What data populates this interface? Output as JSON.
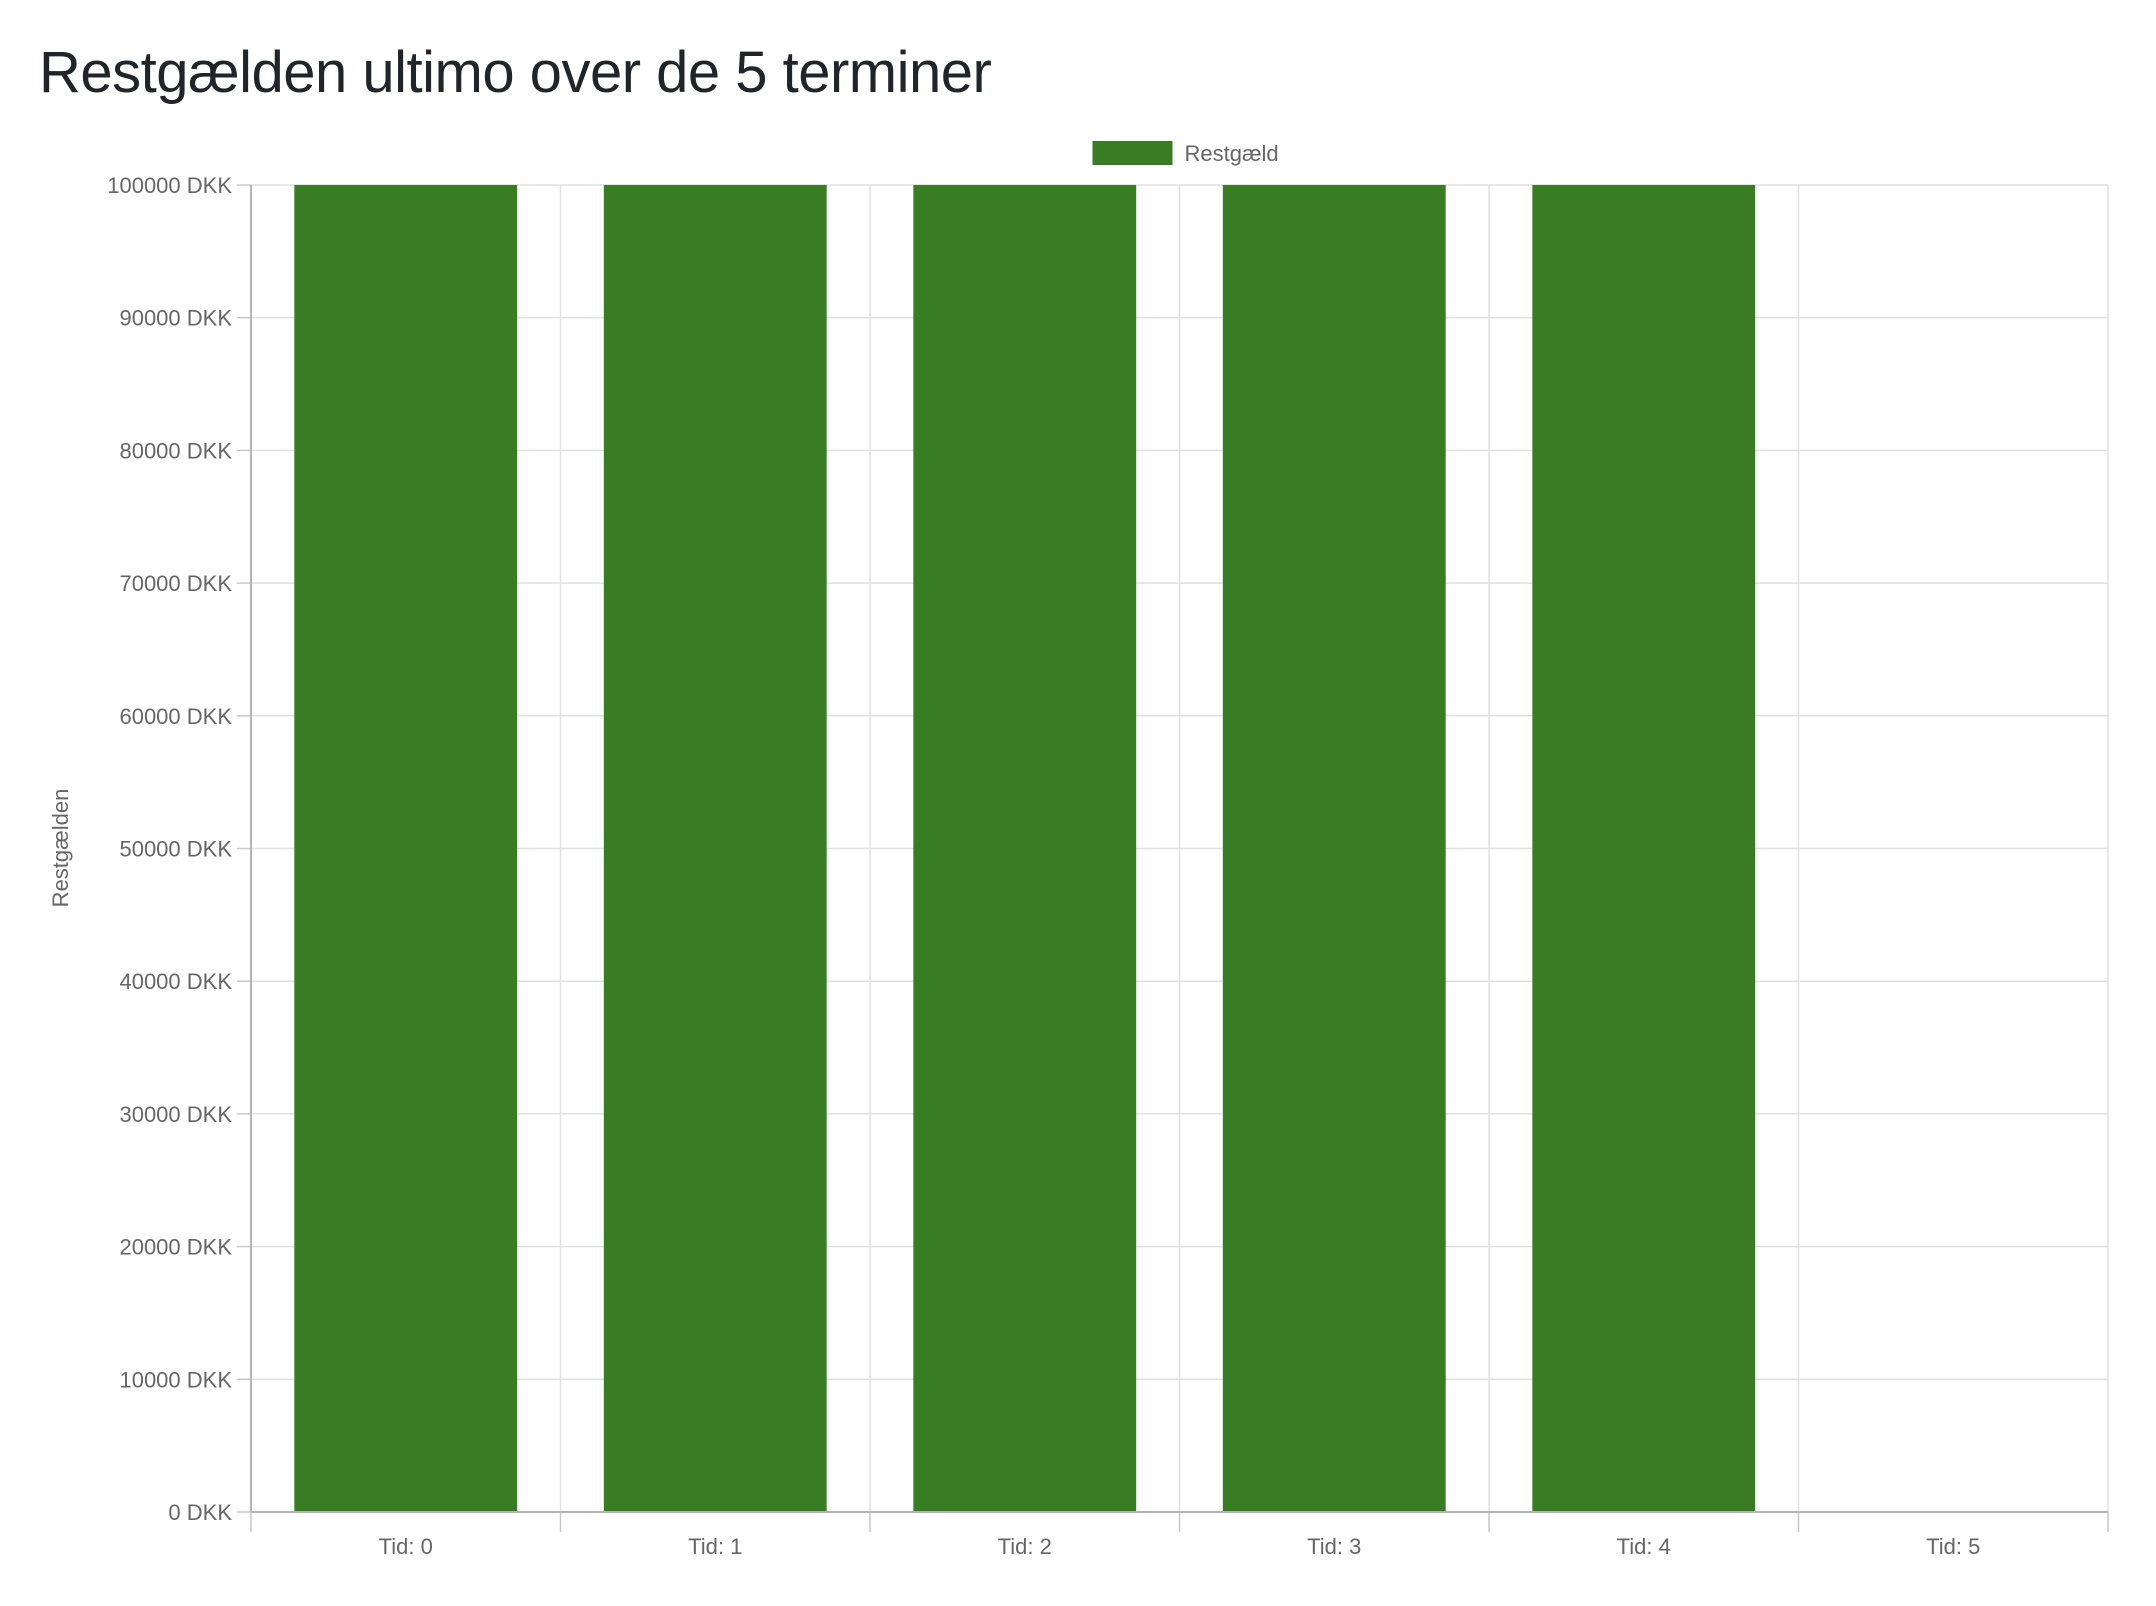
{
  "page": {
    "title": "Restgælden ultimo over de 5 terminer"
  },
  "chart_data": {
    "type": "bar",
    "categories": [
      "Tid: 0",
      "Tid: 1",
      "Tid: 2",
      "Tid: 3",
      "Tid: 4",
      "Tid: 5"
    ],
    "series": [
      {
        "name": "Restgæld",
        "values": [
          100000,
          100000,
          100000,
          100000,
          100000,
          0
        ],
        "color": "#387d23"
      }
    ],
    "ylabel": "Restgælden",
    "xlabel": "",
    "ylim": [
      0,
      100000
    ],
    "y_ticks": [
      {
        "value": 0,
        "label": "0 DKK"
      },
      {
        "value": 10000,
        "label": "10000 DKK"
      },
      {
        "value": 20000,
        "label": "20000 DKK"
      },
      {
        "value": 30000,
        "label": "30000 DKK"
      },
      {
        "value": 40000,
        "label": "40000 DKK"
      },
      {
        "value": 50000,
        "label": "50000 DKK"
      },
      {
        "value": 60000,
        "label": "60000 DKK"
      },
      {
        "value": 70000,
        "label": "70000 DKK"
      },
      {
        "value": 80000,
        "label": "80000 DKK"
      },
      {
        "value": 90000,
        "label": "90000 DKK"
      },
      {
        "value": 100000,
        "label": "100000 DKK"
      }
    ],
    "grid": true,
    "legend_position": "top-center"
  }
}
